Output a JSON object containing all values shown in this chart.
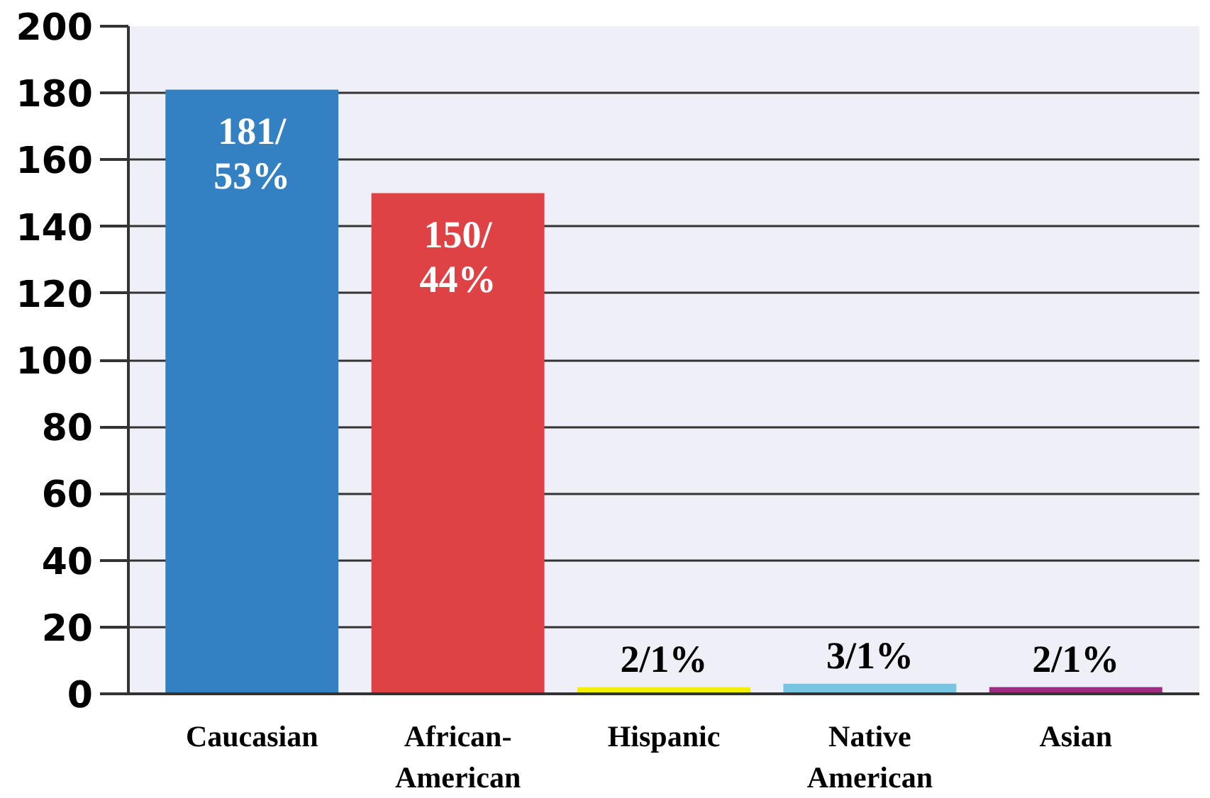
{
  "chart_data": {
    "type": "bar",
    "categories": [
      "Caucasian",
      "African-\nAmerican",
      "Hispanic",
      "Native\nAmerican",
      "Asian"
    ],
    "values": [
      181,
      150,
      2,
      3,
      2
    ],
    "colors": [
      "#3380c2",
      "#de4245",
      "#f5f000",
      "#78c5e3",
      "#9c2d83"
    ],
    "value_labels": [
      "181/\n53%",
      "150/\n44%",
      "2/1%",
      "3/1%",
      "2/1%"
    ],
    "ylim": [
      0,
      200
    ],
    "yticks": [
      0,
      20,
      40,
      60,
      80,
      100,
      120,
      140,
      160,
      180,
      200
    ],
    "grid": "y"
  }
}
